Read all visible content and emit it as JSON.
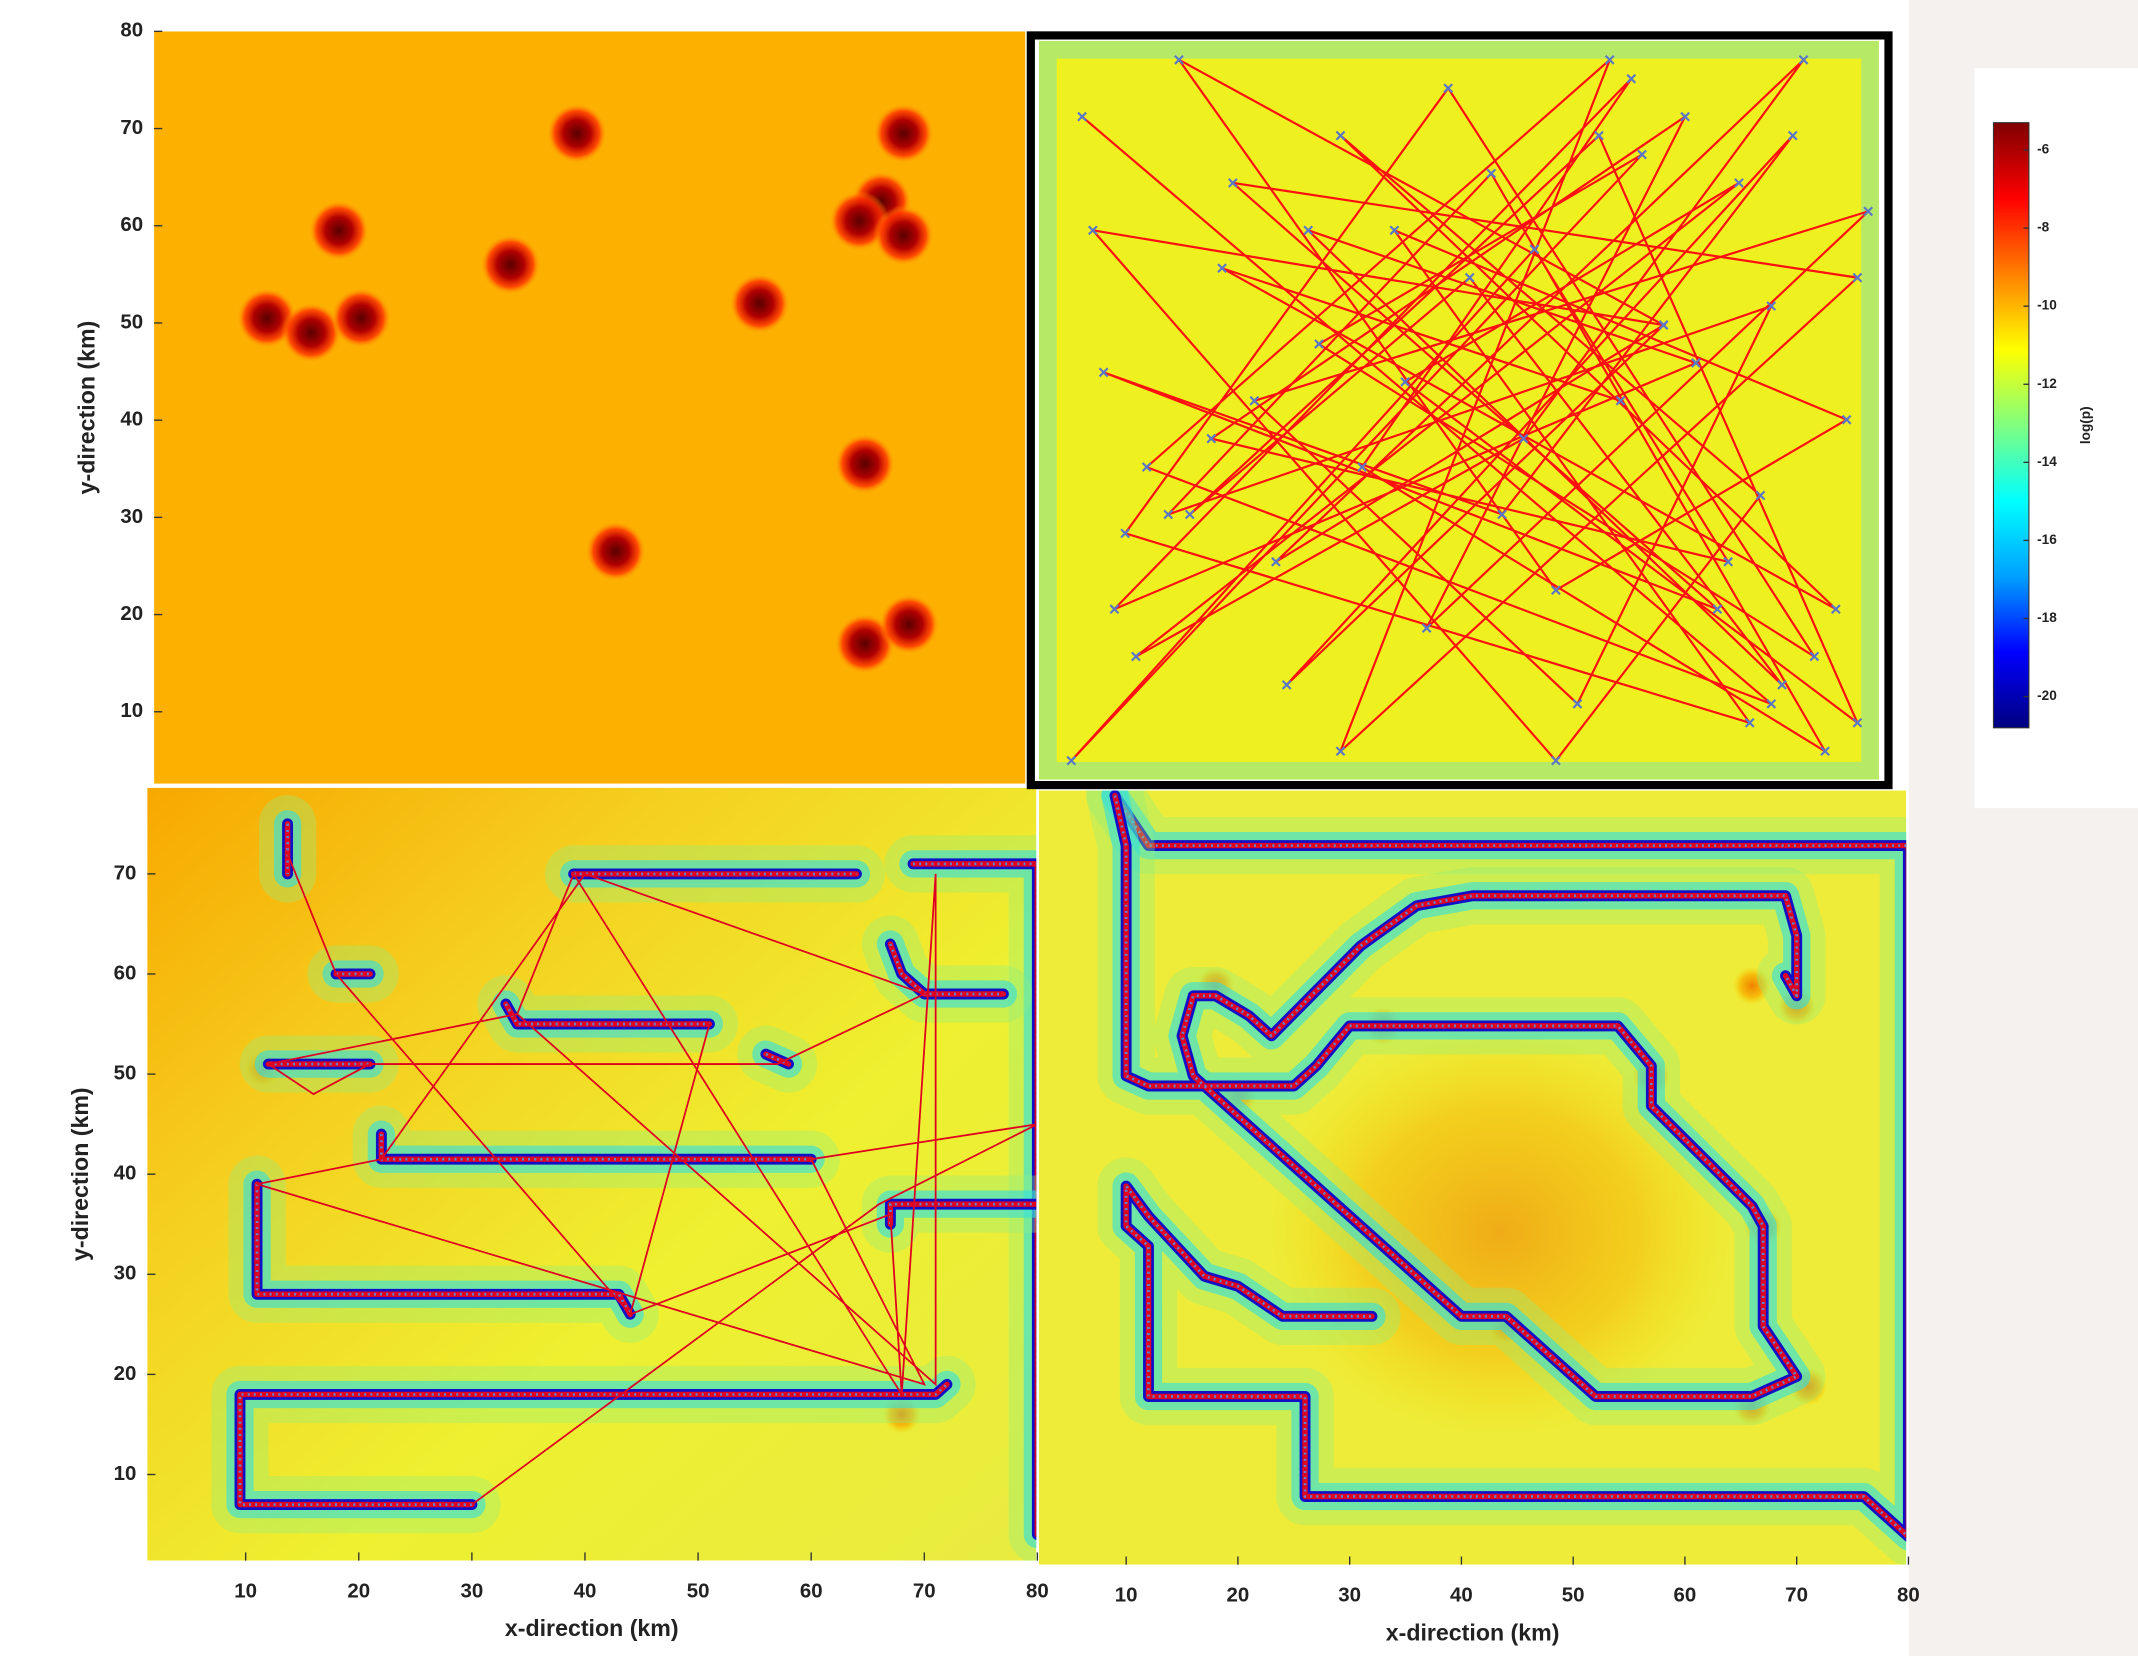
{
  "chart_data": [
    {
      "type": "heatmap",
      "ylabel": "y-direction (km)",
      "xlim": [
        1.3,
        80
      ],
      "ylim": [
        2.6,
        80
      ],
      "yticks": [
        10,
        20,
        30,
        40,
        50,
        60,
        70,
        80
      ],
      "background": "#fdb000",
      "hotspot_color": "#7a0000",
      "hotspots": {
        "x": [
          39.5,
          69,
          18,
          33.5,
          11.5,
          15.5,
          20,
          56,
          67,
          65,
          69,
          65.5,
          43,
          65.5,
          69.5
        ],
        "y": [
          69.5,
          69.5,
          59.5,
          56,
          50.5,
          49,
          50.5,
          52,
          62.5,
          60.5,
          59,
          35.5,
          26.5,
          17,
          19
        ]
      }
    },
    {
      "type": "path",
      "xlim": [
        2,
        80
      ],
      "ylim": [
        2,
        80
      ],
      "background": "#eef020",
      "color": "#ff1010",
      "marker_color": "#5a78c8",
      "border": true,
      "path": {
        "x": [
          6,
          70,
          12,
          55,
          30,
          78,
          20,
          65,
          8,
          45,
          72,
          25,
          60,
          15,
          50,
          77,
          35,
          68,
          10,
          40,
          74,
          28,
          58,
          5,
          48,
          66,
          18,
          62,
          38,
          79,
          22,
          52,
          70,
          14,
          44,
          75,
          32,
          57,
          9,
          63,
          27,
          71,
          42,
          16,
          54,
          78,
          36,
          67,
          11,
          47,
          73,
          24,
          60,
          7,
          50,
          69,
          30,
          76,
          19,
          56
        ],
        "y": [
          72,
          10,
          35,
          78,
          5,
          55,
          65,
          20,
          45,
          30,
          70,
          12,
          50,
          78,
          22,
          40,
          60,
          8,
          28,
          75,
          15,
          48,
          68,
          4,
          58,
          25,
          38,
          72,
          18,
          62,
          42,
          10,
          52,
          30,
          66,
          5,
          35,
          76,
          20,
          46,
          60,
          12,
          55,
          30,
          70,
          8,
          44,
          65,
          15,
          38,
          78,
          25,
          50,
          60,
          4,
          32,
          70,
          20,
          56,
          42
        ]
      }
    },
    {
      "type": "walls",
      "ylabel": "y-direction (km)",
      "xlabel": "x-direction (km)",
      "xlim": [
        1.3,
        79.9
      ],
      "ylim": [
        1.4,
        78.6
      ],
      "xticks": [
        10,
        20,
        30,
        40,
        50,
        60,
        70,
        80
      ],
      "yticks": [
        10,
        20,
        30,
        40,
        50,
        60,
        70
      ],
      "color": "#e00020",
      "walls": [
        {
          "x": [
            13.7,
            13.7
          ],
          "y": [
            75,
            70
          ]
        },
        {
          "x": [
            39,
            64
          ],
          "y": [
            70,
            70
          ]
        },
        {
          "x": [
            69,
            80,
            80
          ],
          "y": [
            71,
            71,
            4
          ]
        },
        {
          "x": [
            67,
            68,
            70,
            72,
            77
          ],
          "y": [
            63,
            60,
            58,
            58,
            58
          ]
        },
        {
          "x": [
            18,
            21
          ],
          "y": [
            60,
            60
          ]
        },
        {
          "x": [
            33,
            34,
            51
          ],
          "y": [
            57,
            55,
            55
          ]
        },
        {
          "x": [
            12,
            21
          ],
          "y": [
            51,
            51
          ]
        },
        {
          "x": [
            22,
            22,
            60
          ],
          "y": [
            44,
            41.5,
            41.5
          ]
        },
        {
          "x": [
            11,
            11,
            43,
            44
          ],
          "y": [
            39,
            28,
            28,
            26
          ]
        },
        {
          "x": [
            67,
            67,
            80
          ],
          "y": [
            35,
            37,
            37
          ]
        },
        {
          "x": [
            30,
            9.5,
            9.5,
            71,
            72
          ],
          "y": [
            7,
            7,
            18,
            18,
            19
          ]
        },
        {
          "x": [
            56,
            58
          ],
          "y": [
            52,
            51
          ]
        }
      ],
      "path": {
        "x": [
          13.7,
          18,
          44,
          51,
          44,
          67,
          68,
          71,
          71,
          34,
          39,
          68,
          39,
          34,
          12,
          16,
          21,
          57,
          70,
          40,
          22,
          11,
          70,
          60,
          80,
          66,
          30
        ],
        "y": [
          72,
          60,
          26,
          55,
          26,
          36,
          18,
          70,
          19,
          56,
          70,
          18,
          70,
          56,
          51,
          48,
          51,
          51,
          58,
          70,
          41.5,
          39,
          19,
          41.5,
          45,
          37,
          7
        ]
      },
      "hotspots": {
        "x": [
          11.5,
          68
        ],
        "y": [
          50.5,
          16
        ]
      }
    },
    {
      "type": "walls",
      "xlabel": "x-direction (km)",
      "xlim": [
        2.2,
        79.8
      ],
      "ylim": [
        1.2,
        78.5
      ],
      "xticks": [
        10,
        20,
        30,
        40,
        50,
        60,
        70,
        80
      ],
      "color": "#e00020",
      "walls": [
        {
          "x": [
            9,
            12,
            80,
            80,
            76,
            26,
            26,
            12,
            12,
            10,
            10,
            12,
            17,
            20,
            24,
            32
          ],
          "y": [
            78,
            73,
            73,
            4,
            8,
            8,
            18,
            18,
            33,
            35,
            39,
            36,
            30,
            29,
            26,
            26
          ]
        },
        {
          "x": [
            9,
            10,
            10,
            12,
            25,
            27,
            30,
            46,
            54,
            57,
            57,
            66,
            67,
            67,
            70,
            66,
            52,
            44,
            40,
            16,
            15,
            16,
            18,
            21,
            23,
            31,
            36,
            41,
            69,
            70,
            70,
            69
          ],
          "y": [
            78,
            73,
            50,
            49,
            49,
            51,
            55,
            55,
            55,
            51,
            47,
            37,
            35,
            25,
            20,
            18,
            18,
            26,
            26,
            50,
            54,
            58,
            58,
            56,
            54,
            63,
            67,
            68,
            68,
            64,
            58,
            60
          ]
        }
      ],
      "hotspots": {
        "x": [
          18,
          20,
          44,
          66,
          70,
          57,
          67,
          66,
          71,
          33
        ],
        "y": [
          59,
          48,
          25,
          59,
          57,
          50,
          35,
          17,
          19,
          55
        ]
      }
    },
    {
      "type": "colorbar",
      "label": "log(p)",
      "clim": [
        -20.8,
        -5.3
      ],
      "ticks": [
        -6,
        -8,
        -10,
        -12,
        -14,
        -16,
        -18,
        -20
      ],
      "colormap": [
        "#00007f",
        "#0000ff",
        "#00a0ff",
        "#00ffff",
        "#80ff80",
        "#ffff00",
        "#ff8000",
        "#ff0000",
        "#7f0000"
      ]
    }
  ]
}
